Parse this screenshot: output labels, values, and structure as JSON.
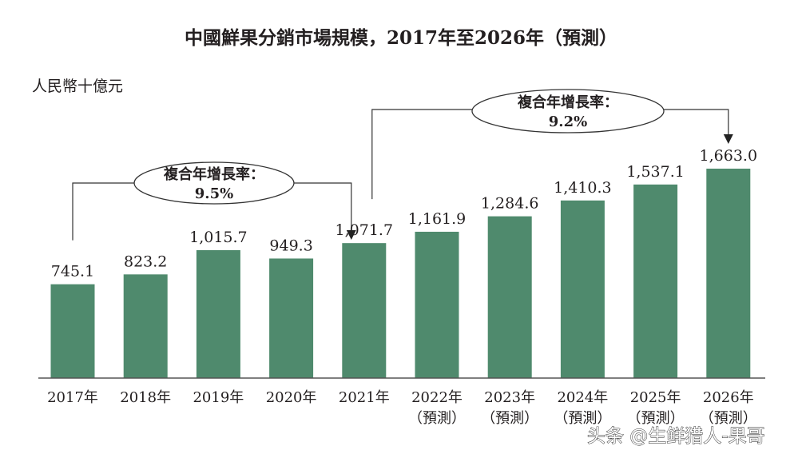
{
  "chart_data": {
    "type": "bar",
    "title": "中國鮮果分銷市場規模，2017年至2026年（預測）",
    "ylabel": "人民幣十億元",
    "categories": [
      "2017年",
      "2018年",
      "2019年",
      "2020年",
      "2021年",
      "2022年",
      "2023年",
      "2024年",
      "2025年",
      "2026年"
    ],
    "category_notes": [
      "",
      "",
      "",
      "",
      "",
      "（預測）",
      "（預測）",
      "（預測）",
      "（預測）",
      "（預測）"
    ],
    "values": [
      745.1,
      823.2,
      1015.7,
      949.3,
      1071.7,
      1161.9,
      1284.6,
      1410.3,
      1537.1,
      1663.0
    ],
    "value_labels": [
      "745.1",
      "823.2",
      "1,015.7",
      "949.3",
      "1,071.7",
      "1,161.9",
      "1,284.6",
      "1,410.3",
      "1,537.1",
      "1,663.0"
    ],
    "ylim": [
      0,
      1800
    ],
    "grid": false,
    "bar_color": "#4f8a6d",
    "annotations": [
      {
        "label": "複合年增長率：",
        "value": "9.5%",
        "from": "2017年",
        "to": "2021年"
      },
      {
        "label": "複合年增長率：",
        "value": "9.2%",
        "from": "2021年",
        "to": "2026年"
      }
    ]
  },
  "watermark": "头条 @生鲜猎人-果哥"
}
